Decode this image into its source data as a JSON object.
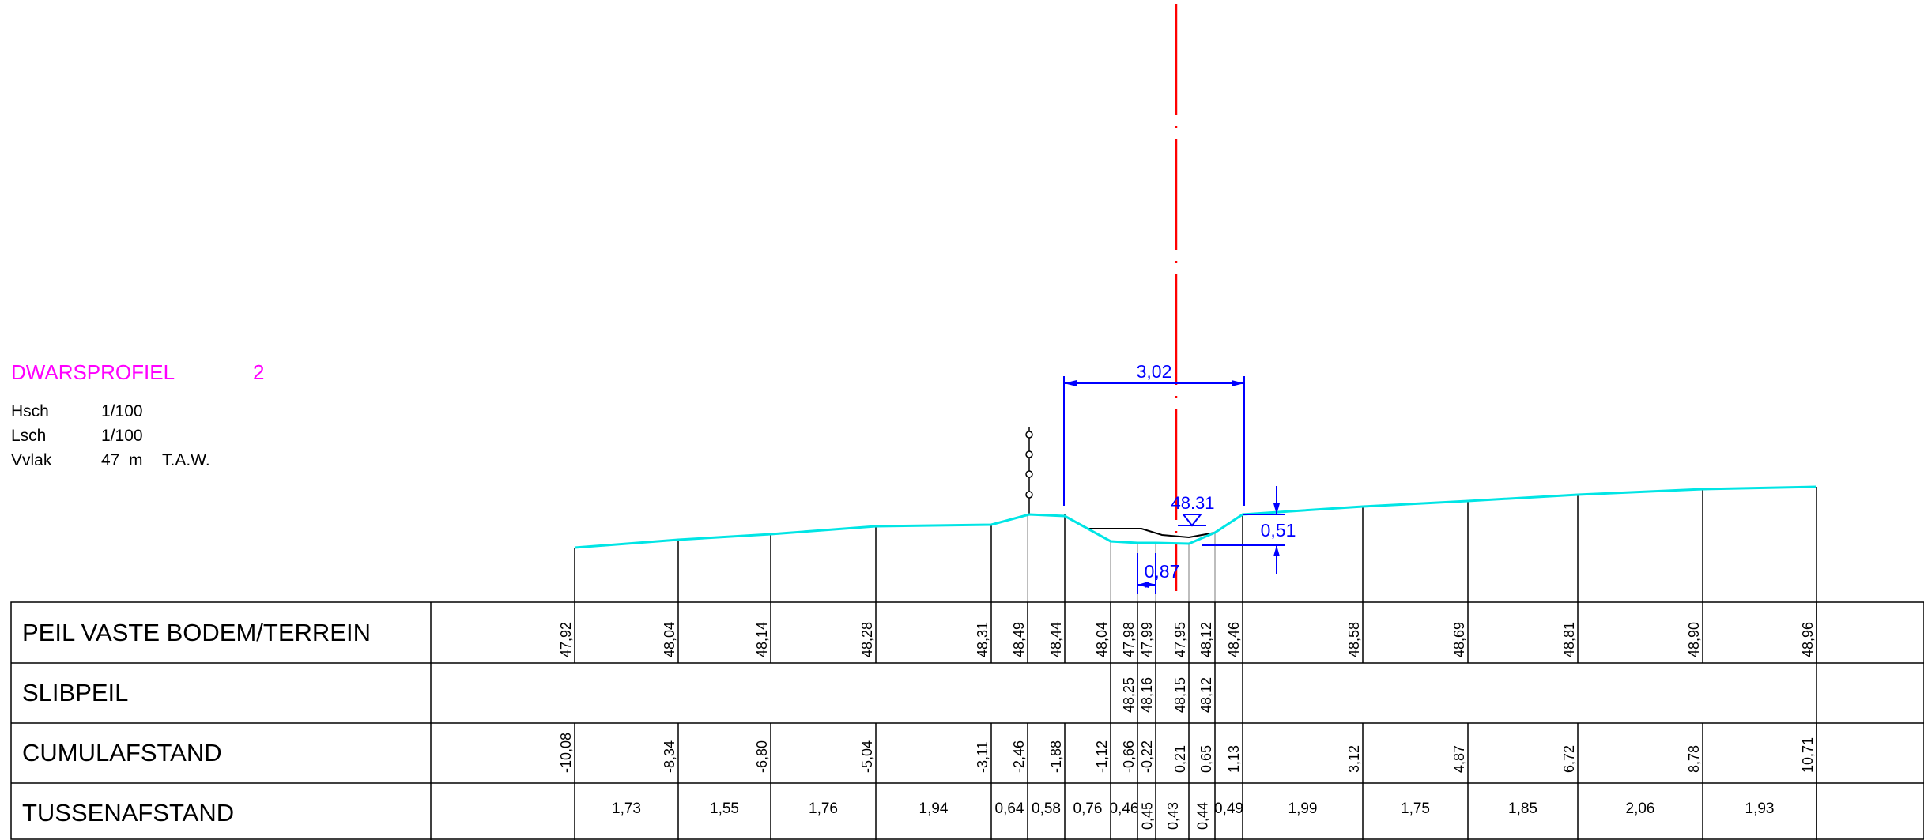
{
  "header": {
    "title": "DWARSPROFIEL",
    "profile_number": "2",
    "rows": [
      {
        "label": "Hsch",
        "value": "1/100",
        "suffix": ""
      },
      {
        "label": "Lsch",
        "value": "1/100",
        "suffix": ""
      },
      {
        "label": "Vvlak",
        "value": "47  m",
        "suffix": "T.A.W."
      }
    ]
  },
  "table": {
    "row_labels": [
      "PEIL VASTE BODEM/TERREIN",
      "SLIBPEIL",
      "CUMULAFSTAND",
      "TUSSENAFSTAND"
    ],
    "peil": [
      "47,92",
      "48,04",
      "48,14",
      "48,28",
      "48,31",
      "48,49",
      "48,44",
      "48,04",
      "47,98",
      "47,99",
      "47,95",
      "48,12",
      "48,46",
      "48,58",
      "48,69",
      "48,81",
      "48,90",
      "48,96"
    ],
    "slibpeil": [
      "48,25",
      "48,16",
      "48,15",
      "48,12"
    ],
    "cumul": [
      "-10,08",
      "-8,34",
      "-6,80",
      "-5,04",
      "-3,11",
      "-2,46",
      "-1,88",
      "-1,12",
      "-0,66",
      "-0,22",
      "0,21",
      "0,65",
      "1,13",
      "3,12",
      "4,87",
      "6,72",
      "8,78",
      "10,71"
    ],
    "tussen": [
      "1,73",
      "1,55",
      "1,76",
      "1,94",
      "0,64",
      "0,58",
      "0,76",
      "0,46",
      "0,45",
      "0,43",
      "0,44",
      "0,49",
      "1,99",
      "1,75",
      "1,85",
      "2,06",
      "1,93"
    ],
    "tussen_vertical": [
      "0,45",
      "0,43",
      "0,44"
    ]
  },
  "dimensions": {
    "width_label": "3,02",
    "water_level": "48.31",
    "depth_label": "0,51",
    "small_width_label": "0,87"
  },
  "colors": {
    "terrain": "#00e5e5",
    "dimension": "#0000ff",
    "axis": "#ff0000",
    "title": "#ff00ff",
    "lines": "#000000"
  }
}
